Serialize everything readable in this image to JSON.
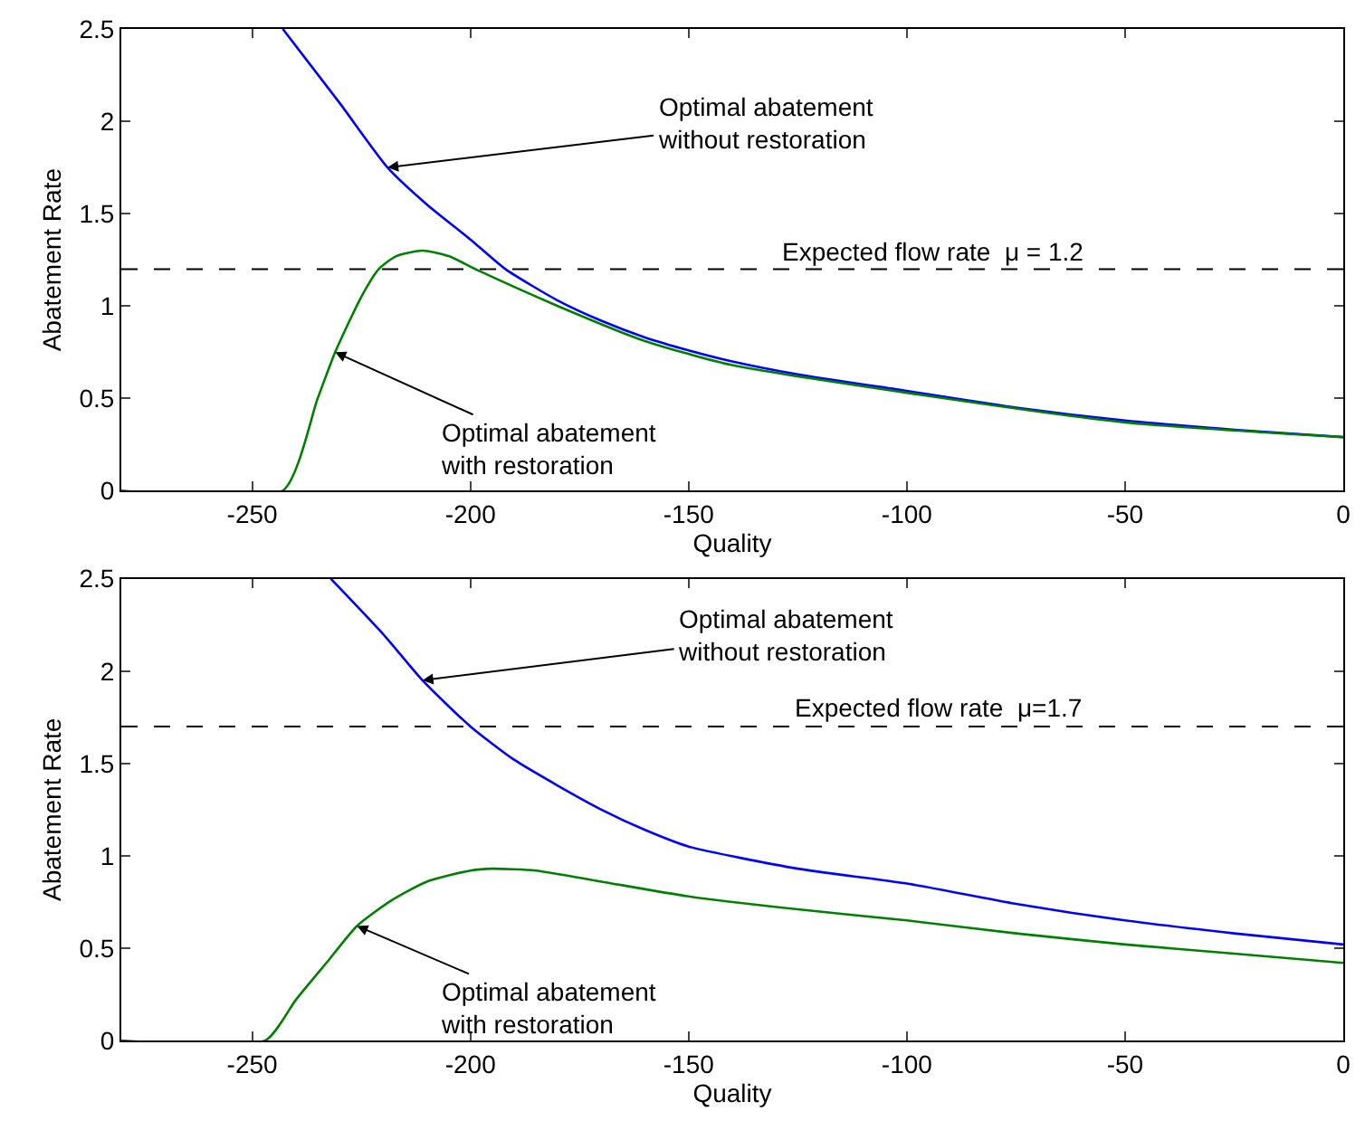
{
  "chart_data": [
    {
      "type": "line",
      "xlabel": "Quality",
      "ylabel": "Abatement Rate",
      "xlim": [
        -280,
        0
      ],
      "ylim": [
        0,
        2.5
      ],
      "xticks": [
        -250,
        -200,
        -150,
        -100,
        -50,
        0
      ],
      "yticks": [
        0,
        0.5,
        1,
        1.5,
        2,
        2.5
      ],
      "grid": false,
      "marker": "none",
      "line_style": "solid",
      "series": [
        {
          "color": "#0000ff",
          "x": [
            -243,
            -230,
            -219,
            -210,
            -200,
            -192,
            -180,
            -170,
            -160,
            -150,
            -140,
            -125,
            -100,
            -75,
            -50,
            -25,
            0
          ],
          "values": [
            2.5,
            2.1,
            1.75,
            1.55,
            1.36,
            1.2,
            1.03,
            0.92,
            0.83,
            0.76,
            0.7,
            0.63,
            0.54,
            0.45,
            0.38,
            0.33,
            0.29
          ]
        },
        {
          "color": "#008000",
          "x": [
            -280,
            -243,
            -235,
            -231,
            -225,
            -221,
            -217,
            -211,
            -205,
            -198,
            -180,
            -160,
            -140,
            -100,
            -50,
            0
          ],
          "values": [
            0,
            0,
            0.5,
            0.75,
            1.05,
            1.2,
            1.27,
            1.3,
            1.27,
            1.19,
            1.0,
            0.81,
            0.68,
            0.53,
            0.37,
            0.29
          ]
        }
      ],
      "ref_lines": [
        {
          "axis": "y",
          "value": 1.2,
          "label": "Expected flow rate  μ = 1.2",
          "color": "#000000",
          "line_style": "dashed"
        }
      ],
      "annotations": [
        {
          "text": "Optimal abatement\nwithout restoration",
          "x": -219,
          "y": 1.75
        },
        {
          "text": "Optimal abatement\nwith restoration",
          "x": -231,
          "y": 0.75
        }
      ]
    },
    {
      "type": "line",
      "xlabel": "Quality",
      "ylabel": "Abatement Rate",
      "xlim": [
        -280,
        0
      ],
      "ylim": [
        0,
        2.5
      ],
      "xticks": [
        -250,
        -200,
        -150,
        -100,
        -50,
        0
      ],
      "yticks": [
        0,
        0.5,
        1,
        1.5,
        2,
        2.5
      ],
      "grid": false,
      "marker": "none",
      "line_style": "solid",
      "series": [
        {
          "color": "#0000ff",
          "x": [
            -232,
            -220,
            -211,
            -200,
            -190,
            -180,
            -170,
            -160,
            -150,
            -125,
            -100,
            -75,
            -50,
            -25,
            0
          ],
          "values": [
            2.5,
            2.2,
            1.95,
            1.7,
            1.52,
            1.38,
            1.25,
            1.14,
            1.05,
            0.93,
            0.85,
            0.74,
            0.65,
            0.58,
            0.52
          ]
        },
        {
          "color": "#008000",
          "x": [
            -280,
            -247,
            -240,
            -233,
            -226,
            -218,
            -210,
            -200,
            -195,
            -185,
            -170,
            -150,
            -125,
            -100,
            -75,
            -50,
            -25,
            0
          ],
          "values": [
            0,
            0,
            0.22,
            0.42,
            0.62,
            0.76,
            0.86,
            0.92,
            0.93,
            0.92,
            0.86,
            0.78,
            0.71,
            0.65,
            0.58,
            0.52,
            0.47,
            0.42
          ]
        }
      ],
      "ref_lines": [
        {
          "axis": "y",
          "value": 1.7,
          "label": "Expected flow rate  μ=1.7",
          "color": "#000000",
          "line_style": "dashed"
        }
      ],
      "annotations": [
        {
          "text": "Optimal abatement\nwithout restoration",
          "x": -211,
          "y": 1.95
        },
        {
          "text": "Optimal abatement\nwith restoration",
          "x": -226,
          "y": 0.62
        }
      ]
    }
  ]
}
